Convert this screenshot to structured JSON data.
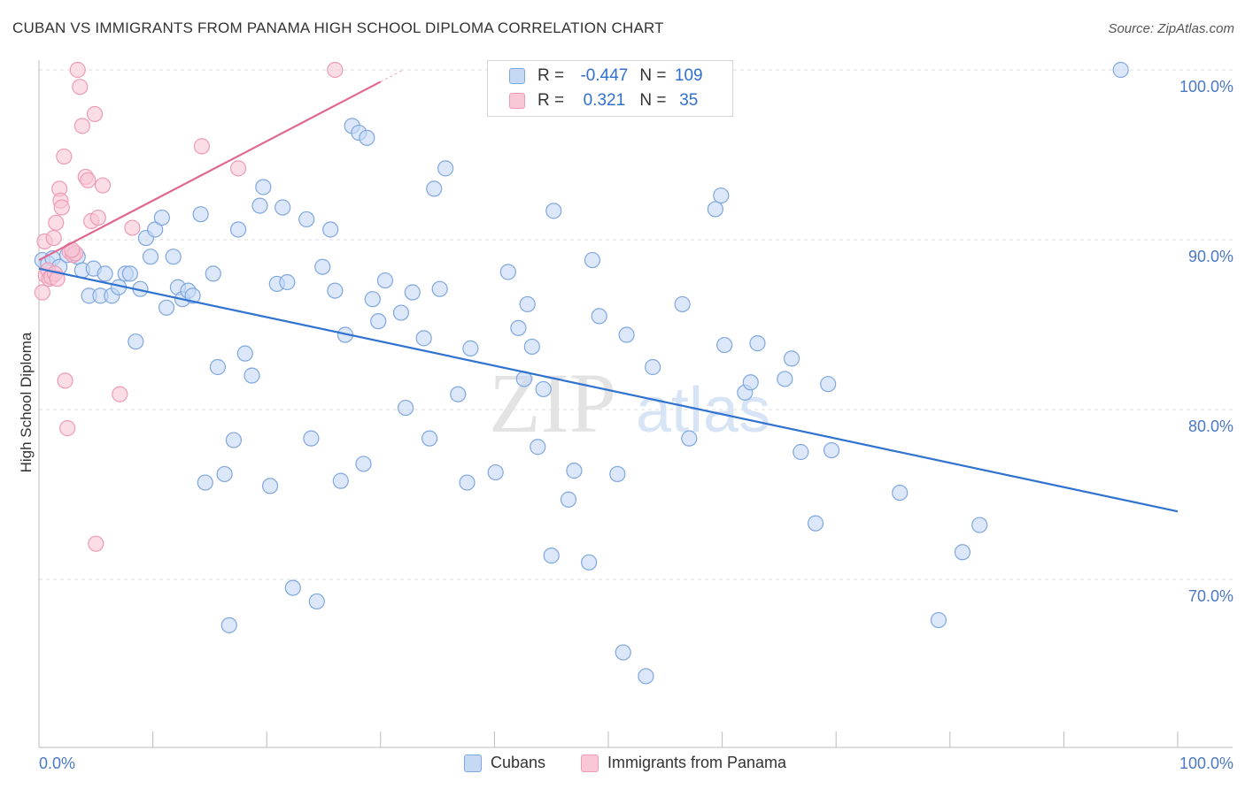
{
  "title": "CUBAN VS IMMIGRANTS FROM PANAMA HIGH SCHOOL DIPLOMA CORRELATION CHART",
  "source": "Source: ZipAtlas.com",
  "watermark": {
    "zip": "ZIP",
    "atlas": "atlas"
  },
  "legend": {
    "rows": [
      {
        "r_label": "R =",
        "r_value": "-0.447",
        "n_label": "N =",
        "n_value": "109"
      },
      {
        "r_label": "R =",
        "r_value": "0.321",
        "n_label": "N =",
        "n_value": "35"
      }
    ]
  },
  "colors": {
    "cubans_fill": "#c5d9f5",
    "cubans_stroke": "#7fa7e0",
    "cubans_line": "#2f72d0",
    "panama_fill": "#f9c7d6",
    "panama_stroke": "#ee9bb6",
    "panama_line": "#e0678f",
    "grid": "#dddddd",
    "axis_text": "#4a78c2"
  },
  "chart_data": {
    "type": "scatter",
    "xlabel": "",
    "ylabel": "High School Diploma",
    "xlim": [
      0,
      100
    ],
    "ylim": [
      60,
      100
    ],
    "x_tick_labels": [
      "0.0%",
      "100.0%"
    ],
    "y_ticks": [
      {
        "value": 100,
        "label": "100.0%"
      },
      {
        "value": 90,
        "label": "90.0%"
      },
      {
        "value": 80,
        "label": "80.0%"
      },
      {
        "value": 70,
        "label": "70.0%"
      }
    ],
    "grid": true,
    "legend_position": "top-center and bottom",
    "series": [
      {
        "name": "Cubans",
        "trend": {
          "x": [
            0,
            100
          ],
          "y": [
            88.3,
            74.0
          ]
        },
        "points": [
          [
            0.3,
            88.8
          ],
          [
            0.8,
            88.6
          ],
          [
            1.2,
            88.9
          ],
          [
            1.8,
            88.4
          ],
          [
            2.5,
            89.1
          ],
          [
            3.4,
            89.0
          ],
          [
            3.8,
            88.2
          ],
          [
            4.4,
            86.7
          ],
          [
            4.8,
            88.3
          ],
          [
            5.4,
            86.7
          ],
          [
            5.8,
            88.0
          ],
          [
            6.4,
            86.7
          ],
          [
            7.0,
            87.2
          ],
          [
            7.6,
            88.0
          ],
          [
            8.0,
            88.0
          ],
          [
            8.5,
            84.0
          ],
          [
            8.9,
            87.1
          ],
          [
            9.4,
            90.1
          ],
          [
            9.8,
            89.0
          ],
          [
            10.2,
            90.6
          ],
          [
            10.8,
            91.3
          ],
          [
            11.2,
            86.0
          ],
          [
            11.8,
            89.0
          ],
          [
            12.2,
            87.2
          ],
          [
            12.6,
            86.5
          ],
          [
            13.1,
            87.0
          ],
          [
            13.5,
            86.7
          ],
          [
            14.2,
            91.5
          ],
          [
            14.6,
            75.7
          ],
          [
            15.3,
            88.0
          ],
          [
            15.7,
            82.5
          ],
          [
            16.3,
            76.2
          ],
          [
            16.7,
            67.3
          ],
          [
            17.1,
            78.2
          ],
          [
            17.5,
            90.6
          ],
          [
            18.1,
            83.3
          ],
          [
            18.7,
            82.0
          ],
          [
            19.4,
            92.0
          ],
          [
            19.7,
            93.1
          ],
          [
            20.3,
            75.5
          ],
          [
            20.9,
            87.4
          ],
          [
            21.4,
            91.9
          ],
          [
            21.8,
            87.5
          ],
          [
            22.3,
            69.5
          ],
          [
            23.5,
            91.2
          ],
          [
            23.9,
            78.3
          ],
          [
            24.4,
            68.7
          ],
          [
            24.9,
            88.4
          ],
          [
            25.6,
            90.6
          ],
          [
            26.0,
            87.0
          ],
          [
            26.5,
            75.8
          ],
          [
            26.9,
            84.4
          ],
          [
            27.5,
            96.7
          ],
          [
            28.1,
            96.3
          ],
          [
            28.5,
            76.8
          ],
          [
            28.8,
            96.0
          ],
          [
            29.3,
            86.5
          ],
          [
            29.8,
            85.2
          ],
          [
            30.4,
            87.6
          ],
          [
            31.8,
            85.7
          ],
          [
            32.2,
            80.1
          ],
          [
            32.8,
            86.9
          ],
          [
            33.8,
            84.2
          ],
          [
            34.3,
            78.3
          ],
          [
            34.7,
            93.0
          ],
          [
            35.2,
            87.1
          ],
          [
            35.7,
            94.2
          ],
          [
            36.8,
            80.9
          ],
          [
            37.6,
            75.7
          ],
          [
            37.9,
            83.6
          ],
          [
            40.1,
            76.3
          ],
          [
            41.2,
            88.1
          ],
          [
            42.1,
            84.8
          ],
          [
            42.6,
            81.8
          ],
          [
            42.9,
            86.2
          ],
          [
            43.3,
            83.7
          ],
          [
            43.8,
            77.8
          ],
          [
            44.3,
            81.2
          ],
          [
            45.0,
            71.4
          ],
          [
            45.2,
            91.7
          ],
          [
            46.5,
            74.7
          ],
          [
            47.0,
            76.4
          ],
          [
            48.3,
            71.0
          ],
          [
            48.6,
            88.8
          ],
          [
            49.2,
            85.5
          ],
          [
            50.8,
            76.2
          ],
          [
            51.3,
            65.7
          ],
          [
            51.6,
            84.4
          ],
          [
            53.3,
            64.3
          ],
          [
            53.9,
            82.5
          ],
          [
            56.5,
            86.2
          ],
          [
            57.1,
            78.3
          ],
          [
            59.4,
            91.8
          ],
          [
            59.9,
            92.6
          ],
          [
            60.2,
            83.8
          ],
          [
            62.0,
            81.0
          ],
          [
            62.5,
            81.6
          ],
          [
            63.1,
            83.9
          ],
          [
            65.5,
            81.8
          ],
          [
            66.1,
            83.0
          ],
          [
            66.9,
            77.5
          ],
          [
            68.2,
            73.3
          ],
          [
            69.3,
            81.5
          ],
          [
            69.6,
            77.6
          ],
          [
            75.6,
            75.1
          ],
          [
            79.0,
            67.6
          ],
          [
            81.1,
            71.6
          ],
          [
            82.6,
            73.2
          ],
          [
            95.0,
            100.0
          ]
        ]
      },
      {
        "name": "Immigrants from Panama",
        "trend": {
          "x": [
            0,
            30
          ],
          "y": [
            88.8,
            99.3
          ]
        },
        "points": [
          [
            0.3,
            86.9
          ],
          [
            0.5,
            89.9
          ],
          [
            0.6,
            87.9
          ],
          [
            0.8,
            88.2
          ],
          [
            0.9,
            87.7
          ],
          [
            1.1,
            87.8
          ],
          [
            1.3,
            90.1
          ],
          [
            1.4,
            88.0
          ],
          [
            1.5,
            91.0
          ],
          [
            1.6,
            87.7
          ],
          [
            1.8,
            93.0
          ],
          [
            1.9,
            92.3
          ],
          [
            2.0,
            91.9
          ],
          [
            2.2,
            94.9
          ],
          [
            2.3,
            81.7
          ],
          [
            2.5,
            78.9
          ],
          [
            2.7,
            89.3
          ],
          [
            3.0,
            89.1
          ],
          [
            3.2,
            89.2
          ],
          [
            3.4,
            100.0
          ],
          [
            3.6,
            99.0
          ],
          [
            3.8,
            96.7
          ],
          [
            4.1,
            93.7
          ],
          [
            4.3,
            93.5
          ],
          [
            4.6,
            91.1
          ],
          [
            4.9,
            97.4
          ],
          [
            5.0,
            72.1
          ],
          [
            5.2,
            91.3
          ],
          [
            5.6,
            93.2
          ],
          [
            7.1,
            80.9
          ],
          [
            8.2,
            90.7
          ],
          [
            14.3,
            95.5
          ],
          [
            17.5,
            94.2
          ],
          [
            26.0,
            100.0
          ],
          [
            2.9,
            89.4
          ]
        ]
      }
    ]
  },
  "bottom_legend": [
    "Cubans",
    "Immigrants from Panama"
  ]
}
